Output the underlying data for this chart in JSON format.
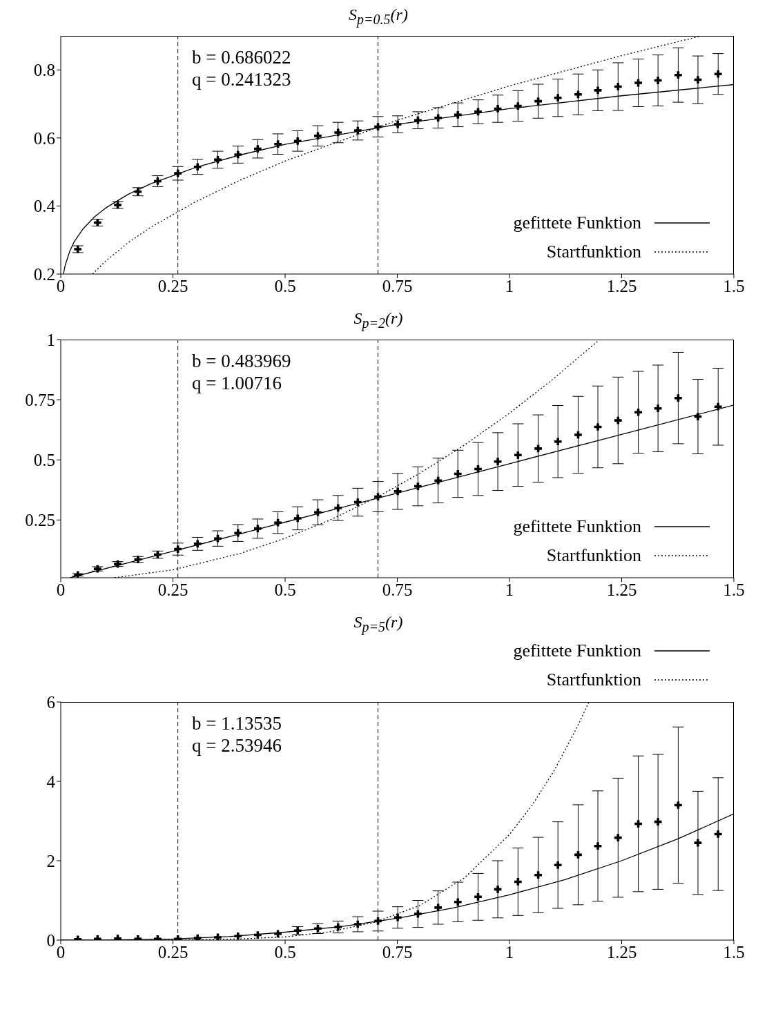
{
  "chart_data": [
    {
      "type": "scatter",
      "title": "S$_{p=0.5}$(r)",
      "x": [
        0.038,
        0.082,
        0.127,
        0.172,
        0.216,
        0.261,
        0.305,
        0.35,
        0.395,
        0.439,
        0.484,
        0.528,
        0.573,
        0.618,
        0.662,
        0.707,
        0.751,
        0.796,
        0.841,
        0.885,
        0.93,
        0.974,
        1.019,
        1.064,
        1.108,
        1.153,
        1.197,
        1.242,
        1.287,
        1.331,
        1.376,
        1.42,
        1.465
      ],
      "series": [
        {
          "type": "scatter",
          "color": "#000000",
          "marker": "cross",
          "values": [
            0.273,
            0.351,
            0.403,
            0.442,
            0.473,
            0.496,
            0.515,
            0.536,
            0.551,
            0.568,
            0.582,
            0.591,
            0.606,
            0.616,
            0.622,
            0.633,
            0.64,
            0.652,
            0.659,
            0.668,
            0.677,
            0.686,
            0.694,
            0.708,
            0.718,
            0.728,
            0.74,
            0.751,
            0.762,
            0.769,
            0.785,
            0.771,
            0.788
          ],
          "errors": [
            0.01,
            0.01,
            0.01,
            0.012,
            0.016,
            0.02,
            0.022,
            0.025,
            0.025,
            0.027,
            0.03,
            0.03,
            0.03,
            0.03,
            0.028,
            0.03,
            0.025,
            0.025,
            0.03,
            0.035,
            0.035,
            0.04,
            0.045,
            0.05,
            0.055,
            0.06,
            0.06,
            0.07,
            0.07,
            0.075,
            0.08,
            0.07,
            0.06
          ]
        },
        {
          "type": "line",
          "name": "gefittete Funktion",
          "color": "#000000",
          "line_style": "solid",
          "x": [
            0.006,
            0.01,
            0.02,
            0.03,
            0.05,
            0.075,
            0.1,
            0.15,
            0.2,
            0.3,
            0.4,
            0.5,
            0.75,
            1,
            1.25,
            1.5
          ],
          "values": [
            0.2,
            0.226,
            0.267,
            0.295,
            0.333,
            0.368,
            0.394,
            0.434,
            0.465,
            0.513,
            0.55,
            0.581,
            0.64,
            0.686,
            0.724,
            0.757
          ]
        },
        {
          "type": "line",
          "name": "Startfunktion",
          "color": "#000000",
          "line_style": "dotted",
          "x": [
            0.071,
            0.1,
            0.15,
            0.2,
            0.3,
            0.4,
            0.5,
            0.75,
            1,
            1.25,
            1.428
          ],
          "values": [
            0.2,
            0.238,
            0.292,
            0.337,
            0.412,
            0.476,
            0.532,
            0.652,
            0.753,
            0.842,
            0.9
          ]
        }
      ],
      "xlim": [
        0,
        1.5
      ],
      "xticks": [
        0,
        0.25,
        0.5,
        0.75,
        1,
        1.25,
        1.5
      ],
      "ylim": [
        0.2,
        0.9
      ],
      "yticks": [
        0.2,
        0.4,
        0.6,
        0.8
      ],
      "ref_lines": [
        {
          "axis": "x",
          "value": 0.261,
          "line_style": "dashed"
        },
        {
          "axis": "x",
          "value": 0.707,
          "line_style": "dashed"
        }
      ],
      "annotations": [
        "b = 0.686022",
        "q = 0.241323"
      ],
      "legend": "bottom right",
      "grid": false
    },
    {
      "type": "scatter",
      "title": "S$_{p=2}$(r)",
      "x": [
        0.038,
        0.082,
        0.127,
        0.172,
        0.216,
        0.261,
        0.305,
        0.35,
        0.395,
        0.439,
        0.484,
        0.528,
        0.573,
        0.618,
        0.662,
        0.707,
        0.751,
        0.796,
        0.841,
        0.885,
        0.93,
        0.974,
        1.019,
        1.064,
        1.108,
        1.153,
        1.197,
        1.242,
        1.287,
        1.331,
        1.376,
        1.42,
        1.465
      ],
      "series": [
        {
          "type": "scatter",
          "color": "#000000",
          "marker": "cross",
          "values": [
            0.022,
            0.047,
            0.067,
            0.086,
            0.106,
            0.129,
            0.151,
            0.173,
            0.196,
            0.214,
            0.239,
            0.257,
            0.282,
            0.3,
            0.324,
            0.347,
            0.369,
            0.39,
            0.414,
            0.442,
            0.462,
            0.493,
            0.52,
            0.547,
            0.576,
            0.604,
            0.637,
            0.664,
            0.698,
            0.714,
            0.757,
            0.68,
            0.721
          ],
          "errors": [
            0.005,
            0.009,
            0.01,
            0.012,
            0.015,
            0.025,
            0.027,
            0.032,
            0.035,
            0.04,
            0.045,
            0.048,
            0.052,
            0.052,
            0.058,
            0.063,
            0.075,
            0.081,
            0.093,
            0.098,
            0.11,
            0.12,
            0.13,
            0.14,
            0.15,
            0.16,
            0.17,
            0.18,
            0.17,
            0.18,
            0.19,
            0.155,
            0.16
          ]
        },
        {
          "type": "line",
          "name": "gefittete Funktion",
          "color": "#000000",
          "line_style": "solid",
          "x": [
            0.021,
            0.25,
            0.5,
            0.75,
            1,
            1.25,
            1.5
          ],
          "values": [
            0.01,
            0.12,
            0.241,
            0.362,
            0.484,
            0.606,
            0.728
          ]
        },
        {
          "type": "line",
          "name": "Startfunktion",
          "color": "#000000",
          "line_style": "dotted",
          "x": [
            0.12,
            0.25,
            0.4,
            0.5,
            0.6,
            0.707,
            0.8,
            0.9,
            1,
            1.1,
            1.2
          ],
          "values": [
            0.01,
            0.043,
            0.111,
            0.174,
            0.25,
            0.347,
            0.444,
            0.562,
            0.694,
            0.84,
            0.999
          ]
        }
      ],
      "xlim": [
        0,
        1.5
      ],
      "xticks": [
        0,
        0.25,
        0.5,
        0.75,
        1,
        1.25,
        1.5
      ],
      "ylim": [
        0.01,
        1
      ],
      "yticks": [
        0.25,
        0.5,
        0.75,
        1
      ],
      "ref_lines": [
        {
          "axis": "x",
          "value": 0.261,
          "line_style": "dashed"
        },
        {
          "axis": "x",
          "value": 0.707,
          "line_style": "dashed"
        }
      ],
      "annotations": [
        "b = 0.483969",
        "q = 1.00716"
      ],
      "legend": "bottom right",
      "grid": false
    },
    {
      "type": "scatter",
      "title": "S$_{p=5}$(r)",
      "x": [
        0.038,
        0.082,
        0.127,
        0.172,
        0.216,
        0.261,
        0.305,
        0.35,
        0.395,
        0.439,
        0.484,
        0.528,
        0.573,
        0.618,
        0.662,
        0.707,
        0.751,
        0.796,
        0.841,
        0.885,
        0.93,
        0.974,
        1.019,
        1.064,
        1.108,
        1.153,
        1.197,
        1.242,
        1.287,
        1.331,
        1.376,
        1.42,
        1.465
      ],
      "series": [
        {
          "type": "scatter",
          "color": "#000000",
          "marker": "cross",
          "values": [
            0.02,
            0.03,
            0.04,
            0.03,
            0.03,
            0.03,
            0.05,
            0.07,
            0.1,
            0.13,
            0.16,
            0.24,
            0.29,
            0.33,
            0.4,
            0.48,
            0.57,
            0.66,
            0.82,
            0.96,
            1.09,
            1.28,
            1.47,
            1.64,
            1.89,
            2.15,
            2.37,
            2.58,
            2.93,
            2.98,
            3.4,
            2.45,
            2.67
          ],
          "errors": [
            null,
            null,
            null,
            null,
            null,
            null,
            null,
            null,
            null,
            null,
            null,
            0.1,
            0.125,
            0.15,
            0.19,
            0.25,
            0.27,
            0.34,
            0.42,
            0.5,
            0.59,
            0.72,
            0.85,
            0.95,
            1.09,
            1.26,
            1.39,
            1.5,
            1.71,
            1.7,
            1.97,
            1.3,
            1.42
          ]
        },
        {
          "type": "line",
          "name": "gefittete Funktion",
          "color": "#000000",
          "line_style": "solid",
          "x": [
            0,
            0.1,
            0.25,
            0.375,
            0.5,
            0.625,
            0.75,
            0.875,
            1,
            1.125,
            1.25,
            1.375,
            1.5
          ],
          "values": [
            0,
            0,
            0.03,
            0.09,
            0.2,
            0.34,
            0.55,
            0.81,
            1.14,
            1.53,
            2,
            2.55,
            3.18
          ]
        },
        {
          "type": "line",
          "name": "Startfunktion",
          "color": "#000000",
          "line_style": "dotted",
          "x": [
            0.2,
            0.3,
            0.4,
            0.5,
            0.6,
            0.7,
            0.8,
            0.9,
            1,
            1.05,
            1.1,
            1.15,
            1.177
          ],
          "values": [
            0,
            0.01,
            0.03,
            0.08,
            0.21,
            0.45,
            0.87,
            1.57,
            2.66,
            3.39,
            4.28,
            5.35,
            6
          ]
        }
      ],
      "xlim": [
        0,
        1.5
      ],
      "xticks": [
        0,
        0.25,
        0.5,
        0.75,
        1,
        1.25,
        1.5
      ],
      "ylim": [
        0,
        6
      ],
      "yticks": [
        0,
        2,
        4,
        6
      ],
      "ref_lines": [
        {
          "axis": "x",
          "value": 0.261,
          "line_style": "dashed"
        },
        {
          "axis": "x",
          "value": 0.707,
          "line_style": "dashed"
        }
      ],
      "annotations": [
        "b = 1.13535",
        "q = 2.53946"
      ],
      "legend": "top right",
      "grid": false
    }
  ]
}
